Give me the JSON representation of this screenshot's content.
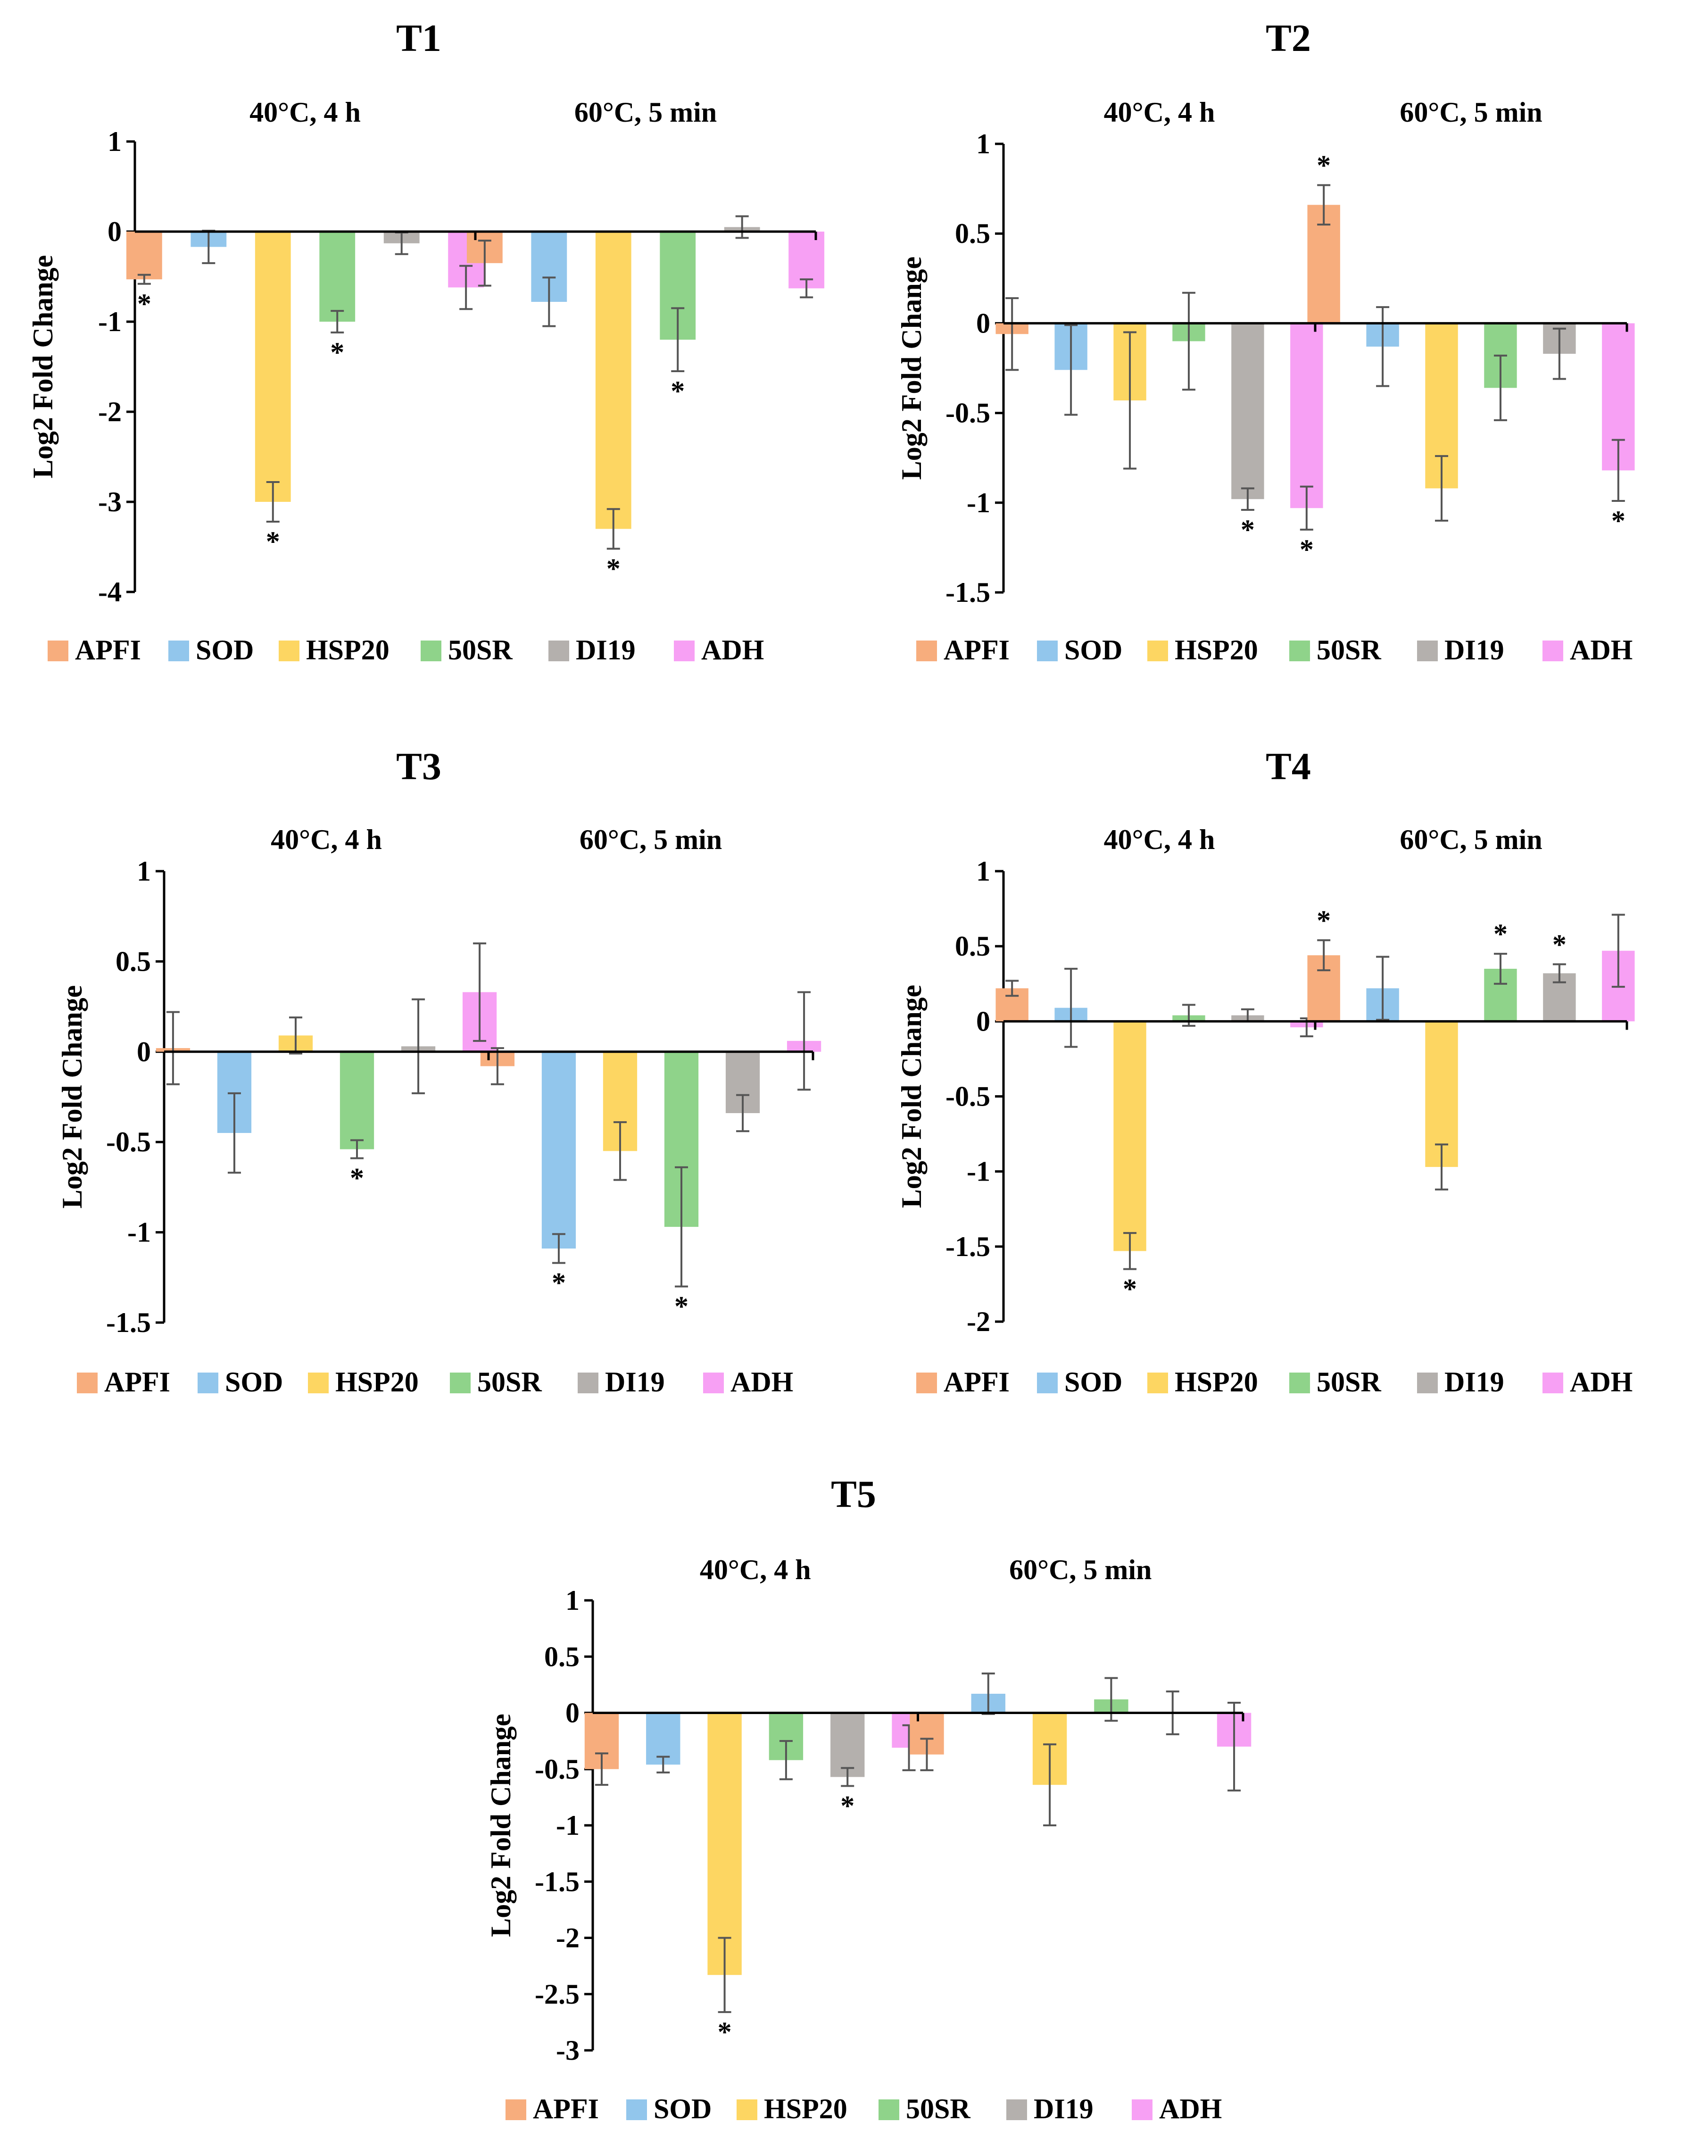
{
  "figure": {
    "series_names": [
      "APFI",
      "SOD",
      "HSP20",
      "50SR",
      "DI19",
      "ADH"
    ],
    "series_colors": [
      "#F7AD7D",
      "#92C6EC",
      "#FDD662",
      "#8FD38A",
      "#B4B0AD",
      "#F7A0F4"
    ],
    "y_axis_label": "Log2 Fold Change",
    "significance_marker": "*"
  },
  "chart_data": [
    {
      "type": "bar",
      "title": "T1",
      "ylabel": "Log2 Fold Change",
      "categories": [
        "40°C, 4 h",
        "60°C, 5 min"
      ],
      "ylim": [
        -4,
        1
      ],
      "yticks": [
        1,
        0,
        -1,
        -2,
        -3,
        -4
      ],
      "ytick_labels": [
        "1",
        "0",
        "-1",
        "-2",
        "-3",
        "-4"
      ],
      "series": [
        {
          "name": "APFI",
          "values": [
            -0.53,
            -0.35
          ],
          "errors": [
            0.05,
            0.25
          ],
          "significant": [
            true,
            false
          ]
        },
        {
          "name": "SOD",
          "values": [
            -0.17,
            -0.78
          ],
          "errors": [
            0.18,
            0.27
          ],
          "significant": [
            false,
            false
          ]
        },
        {
          "name": "HSP20",
          "values": [
            -3.0,
            -3.3
          ],
          "errors": [
            0.22,
            0.22
          ],
          "significant": [
            true,
            true
          ]
        },
        {
          "name": "50SR",
          "values": [
            -1.0,
            -1.2
          ],
          "errors": [
            0.12,
            0.35
          ],
          "significant": [
            true,
            true
          ]
        },
        {
          "name": "DI19",
          "values": [
            -0.13,
            0.05
          ],
          "errors": [
            0.12,
            0.12
          ],
          "significant": [
            false,
            false
          ]
        },
        {
          "name": "ADH",
          "values": [
            -0.62,
            -0.63
          ],
          "errors": [
            0.24,
            0.1
          ],
          "significant": [
            false,
            false
          ]
        }
      ]
    },
    {
      "type": "bar",
      "title": "T2",
      "ylabel": "Log2 Fold Change",
      "categories": [
        "40°C, 4 h",
        "60°C, 5 min"
      ],
      "ylim": [
        -1.5,
        1
      ],
      "yticks": [
        1,
        0.5,
        0,
        -0.5,
        -1,
        -1.5
      ],
      "ytick_labels": [
        "1",
        "0.5",
        "0",
        "-0.5",
        "-1",
        "-1.5"
      ],
      "series": [
        {
          "name": "APFI",
          "values": [
            -0.06,
            0.66
          ],
          "errors": [
            0.2,
            0.11
          ],
          "significant": [
            false,
            true
          ]
        },
        {
          "name": "SOD",
          "values": [
            -0.26,
            -0.13
          ],
          "errors": [
            0.25,
            0.22
          ],
          "significant": [
            false,
            false
          ]
        },
        {
          "name": "HSP20",
          "values": [
            -0.43,
            -0.92
          ],
          "errors": [
            0.38,
            0.18
          ],
          "significant": [
            false,
            false
          ]
        },
        {
          "name": "50SR",
          "values": [
            -0.1,
            -0.36
          ],
          "errors": [
            0.27,
            0.18
          ],
          "significant": [
            false,
            false
          ]
        },
        {
          "name": "DI19",
          "values": [
            -0.98,
            -0.17
          ],
          "errors": [
            0.06,
            0.14
          ],
          "significant": [
            true,
            false
          ]
        },
        {
          "name": "ADH",
          "values": [
            -1.03,
            -0.82
          ],
          "errors": [
            0.12,
            0.17
          ],
          "significant": [
            true,
            true
          ]
        }
      ]
    },
    {
      "type": "bar",
      "title": "T3",
      "ylabel": "Log2 Fold Change",
      "categories": [
        "40°C, 4 h",
        "60°C, 5 min"
      ],
      "ylim": [
        -1.5,
        1
      ],
      "yticks": [
        1,
        0.5,
        0,
        -0.5,
        -1,
        -1.5
      ],
      "ytick_labels": [
        "1",
        "0.5",
        "0",
        "-0.5",
        "-1",
        "-1.5"
      ],
      "series": [
        {
          "name": "APFI",
          "values": [
            0.02,
            -0.08
          ],
          "errors": [
            0.2,
            0.1
          ],
          "significant": [
            false,
            false
          ]
        },
        {
          "name": "SOD",
          "values": [
            -0.45,
            -1.09
          ],
          "errors": [
            0.22,
            0.08
          ],
          "significant": [
            false,
            true
          ]
        },
        {
          "name": "HSP20",
          "values": [
            0.09,
            -0.55
          ],
          "errors": [
            0.1,
            0.16
          ],
          "significant": [
            false,
            false
          ]
        },
        {
          "name": "50SR",
          "values": [
            -0.54,
            -0.97
          ],
          "errors": [
            0.05,
            0.33
          ],
          "significant": [
            true,
            true
          ]
        },
        {
          "name": "DI19",
          "values": [
            0.03,
            -0.34
          ],
          "errors": [
            0.26,
            0.1
          ],
          "significant": [
            false,
            false
          ]
        },
        {
          "name": "ADH",
          "values": [
            0.33,
            0.06
          ],
          "errors": [
            0.27,
            0.27
          ],
          "significant": [
            false,
            false
          ]
        }
      ]
    },
    {
      "type": "bar",
      "title": "T4",
      "ylabel": "Log2 Fold Change",
      "categories": [
        "40°C, 4 h",
        "60°C, 5 min"
      ],
      "ylim": [
        -2,
        1
      ],
      "yticks": [
        1,
        0.5,
        0,
        -0.5,
        -1,
        -1.5,
        -2
      ],
      "ytick_labels": [
        "1",
        "0.5",
        "0",
        "-0.5",
        "-1",
        "-1.5",
        "-2"
      ],
      "series": [
        {
          "name": "APFI",
          "values": [
            0.22,
            0.44
          ],
          "errors": [
            0.05,
            0.1
          ],
          "significant": [
            false,
            true
          ]
        },
        {
          "name": "SOD",
          "values": [
            0.09,
            0.22
          ],
          "errors": [
            0.26,
            0.21
          ],
          "significant": [
            false,
            false
          ]
        },
        {
          "name": "HSP20",
          "values": [
            -1.53,
            -0.97
          ],
          "errors": [
            0.12,
            0.15
          ],
          "significant": [
            true,
            false
          ]
        },
        {
          "name": "50SR",
          "values": [
            0.04,
            0.35
          ],
          "errors": [
            0.07,
            0.1
          ],
          "significant": [
            false,
            true
          ]
        },
        {
          "name": "DI19",
          "values": [
            0.04,
            0.32
          ],
          "errors": [
            0.04,
            0.06
          ],
          "significant": [
            false,
            true
          ]
        },
        {
          "name": "ADH",
          "values": [
            -0.04,
            0.47
          ],
          "errors": [
            0.06,
            0.24
          ],
          "significant": [
            false,
            false
          ]
        }
      ]
    },
    {
      "type": "bar",
      "title": "T5",
      "ylabel": "Log2 Fold Change",
      "categories": [
        "40°C, 4 h",
        "60°C, 5 min"
      ],
      "ylim": [
        -3,
        1
      ],
      "yticks": [
        1,
        0.5,
        0,
        -0.5,
        -1,
        -1.5,
        -2,
        -2.5,
        -3
      ],
      "ytick_labels": [
        "1",
        "0.5",
        "0",
        "-0.5",
        "-1",
        "-1.5",
        "-2",
        "-2.5",
        "-3"
      ],
      "series": [
        {
          "name": "APFI",
          "values": [
            -0.5,
            -0.37
          ],
          "errors": [
            0.14,
            0.14
          ],
          "significant": [
            false,
            false
          ]
        },
        {
          "name": "SOD",
          "values": [
            -0.46,
            0.17
          ],
          "errors": [
            0.07,
            0.18
          ],
          "significant": [
            false,
            false
          ]
        },
        {
          "name": "HSP20",
          "values": [
            -2.33,
            -0.64
          ],
          "errors": [
            0.33,
            0.36
          ],
          "significant": [
            true,
            false
          ]
        },
        {
          "name": "50SR",
          "values": [
            -0.42,
            0.12
          ],
          "errors": [
            0.17,
            0.19
          ],
          "significant": [
            false,
            false
          ]
        },
        {
          "name": "DI19",
          "values": [
            -0.57,
            0.0
          ],
          "errors": [
            0.08,
            0.19
          ],
          "significant": [
            true,
            false
          ]
        },
        {
          "name": "ADH",
          "values": [
            -0.31,
            -0.3
          ],
          "errors": [
            0.2,
            0.39
          ],
          "significant": [
            false,
            false
          ]
        }
      ]
    }
  ]
}
